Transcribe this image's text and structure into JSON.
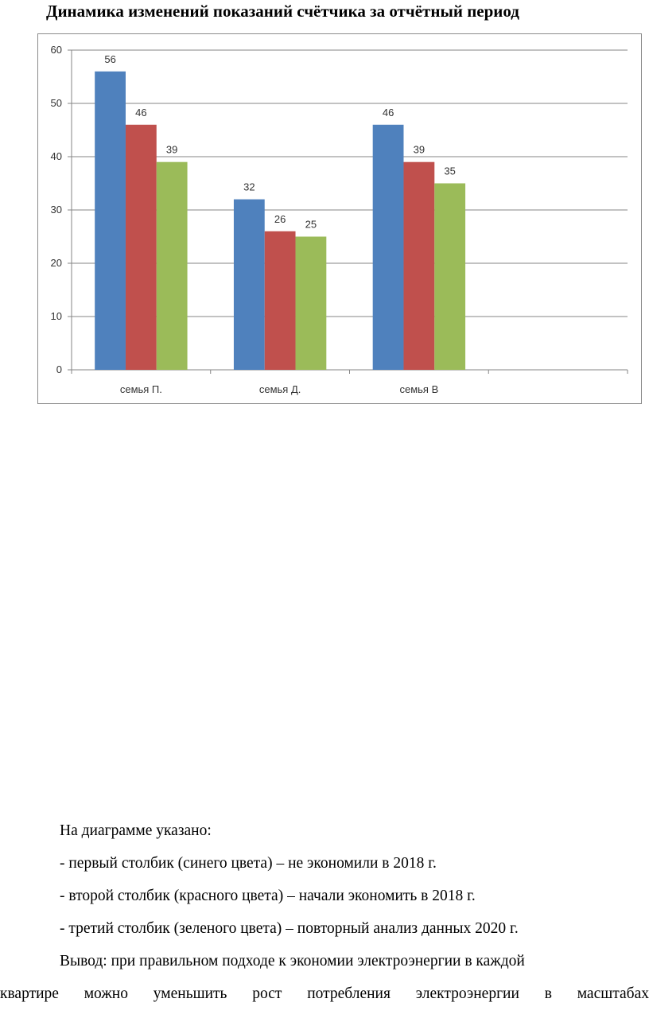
{
  "document": {
    "title": "Динамика изменений показаний счётчика за отчётный период",
    "paragraphs": [
      "На диаграмме указано:",
      "- первый столбик (синего цвета) – не экономили в 2018 г.",
      "- второй столбик (красного цвета) – начали экономить в 2018 г.",
      "- третий столбик (зеленого цвета) – повторный анализ данных 2020 г.",
      "Вывод: при правильном подходе к экономии электроэнергии в каждой",
      "квартире можно уменьшить рост потребления электроэнергии в масштабах"
    ]
  },
  "chart_data": {
    "type": "bar",
    "title": "",
    "xlabel": "",
    "ylabel": "",
    "ylim": [
      0,
      60
    ],
    "yticks": [
      0,
      10,
      20,
      30,
      40,
      50,
      60
    ],
    "grid": true,
    "legend": "none",
    "categories": [
      "семья П.",
      "семья Д.",
      "семья В",
      ""
    ],
    "series": [
      {
        "values": [
          56,
          32,
          46,
          null
        ],
        "color": "#4F81BD"
      },
      {
        "values": [
          46,
          26,
          39,
          null
        ],
        "color": "#C0504D"
      },
      {
        "values": [
          39,
          25,
          35,
          null
        ],
        "color": "#9BBB59"
      }
    ]
  }
}
